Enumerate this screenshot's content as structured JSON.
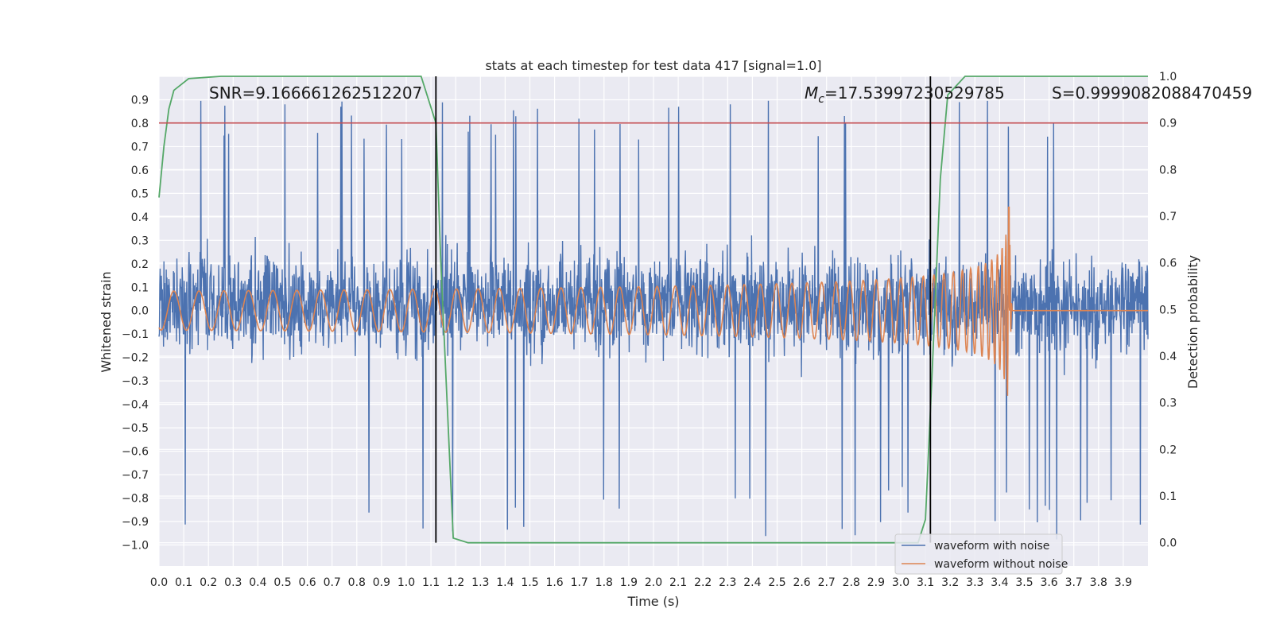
{
  "chart_data": {
    "type": "line",
    "title": "stats at each timestep for test data 417 [signal=1.0]",
    "xlabel": "Time (s)",
    "ylabel": "Whitened strain",
    "y2label": "Detection probability",
    "xlim": [
      0.0,
      4.0
    ],
    "ylim": [
      -1.09,
      1.0
    ],
    "y2lim": [
      -0.05,
      1.0
    ],
    "x_ticks": [
      "0.0",
      "0.1",
      "0.2",
      "0.3",
      "0.4",
      "0.5",
      "0.6",
      "0.7",
      "0.8",
      "0.9",
      "1.0",
      "1.1",
      "1.2",
      "1.3",
      "1.4",
      "1.5",
      "1.6",
      "1.7",
      "1.8",
      "1.9",
      "2.0",
      "2.1",
      "2.2",
      "2.3",
      "2.4",
      "2.5",
      "2.6",
      "2.7",
      "2.8",
      "2.9",
      "3.0",
      "3.1",
      "3.2",
      "3.3",
      "3.4",
      "3.5",
      "3.6",
      "3.7",
      "3.8",
      "3.9"
    ],
    "y_ticks": [
      "0.9",
      "0.8",
      "0.7",
      "0.6",
      "0.5",
      "0.4",
      "0.3",
      "0.2",
      "0.1",
      "0.0",
      "−0.1",
      "−0.2",
      "−0.3",
      "−0.4",
      "−0.5",
      "−0.6",
      "−0.7",
      "−0.8",
      "−0.9",
      "−1.0"
    ],
    "y2_ticks": [
      "1.0",
      "0.9",
      "0.8",
      "0.7",
      "0.6",
      "0.5",
      "0.4",
      "0.3",
      "0.2",
      "0.1",
      "0.0"
    ],
    "grid": true,
    "legend_position": "bottom-right",
    "annotations": {
      "snr": "SNR=9.166661262512207",
      "mc_symbol": "M",
      "mc_sub": "c",
      "mc_value": "=17.53997230529785",
      "s": "S=0.9999082088470459"
    },
    "series": [
      {
        "name": "waveform with noise",
        "color": "#4c72b0",
        "kind": "noise",
        "amplitude_range": [
          -1.0,
          0.9
        ]
      },
      {
        "name": "waveform without noise",
        "color": "#dd8452",
        "kind": "chirp",
        "merger_time": 3.44,
        "peak_amplitude": 0.45
      },
      {
        "name": "",
        "color": "#55a868",
        "axis": "right",
        "x": [
          0.0,
          0.02,
          0.04,
          0.06,
          0.12,
          0.25,
          1.06,
          1.12,
          1.14,
          1.19,
          1.25,
          3.0,
          3.07,
          3.1,
          3.13,
          3.16,
          3.19,
          3.26,
          3.9,
          4.0
        ],
        "y": [
          0.74,
          0.85,
          0.93,
          0.97,
          0.995,
          1.0,
          1.0,
          0.9,
          0.6,
          0.01,
          0.0,
          0.0,
          0.0,
          0.05,
          0.4,
          0.78,
          0.96,
          1.0,
          1.0,
          1.0
        ]
      }
    ],
    "hlines": [
      {
        "y2": 0.9,
        "color": "#c44e52"
      }
    ],
    "vlines": [
      {
        "x": 1.12,
        "color": "#000000"
      },
      {
        "x": 3.12,
        "color": "#000000"
      }
    ]
  }
}
